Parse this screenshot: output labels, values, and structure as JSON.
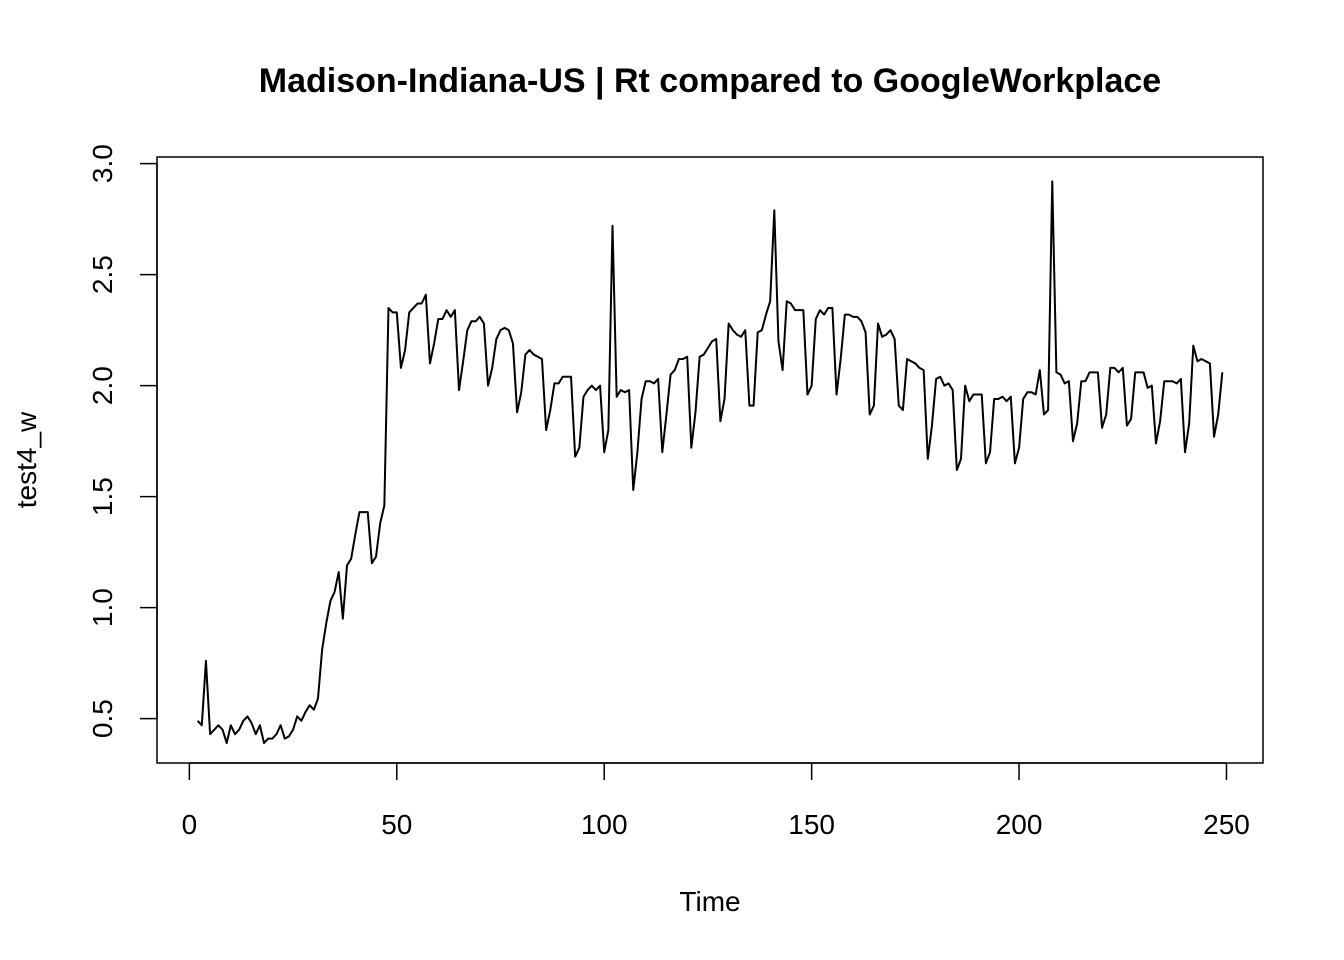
{
  "chart_data": {
    "type": "line",
    "title": "Madison-Indiana-US | Rt compared to GoogleWorkplace",
    "xlabel": "Time",
    "ylabel": "test4_w",
    "xlim": [
      -7.8,
      258.8
    ],
    "ylim": [
      0.3,
      3.03
    ],
    "x_ticks": [
      0,
      50,
      100,
      150,
      200,
      250
    ],
    "y_ticks": [
      0.5,
      1.0,
      1.5,
      2.0,
      2.5,
      3.0
    ],
    "x_tick_labels": [
      "0",
      "50",
      "100",
      "150",
      "200",
      "250"
    ],
    "y_tick_labels": [
      "0.5",
      "1.0",
      "1.5",
      "2.0",
      "2.5",
      "3.0"
    ],
    "grid": false,
    "line_color": "#000000",
    "series": [
      {
        "x_start": 2,
        "values": [
          0.49,
          0.47,
          0.76,
          0.43,
          0.45,
          0.47,
          0.45,
          0.39,
          0.47,
          0.43,
          0.45,
          0.49,
          0.51,
          0.48,
          0.43,
          0.47,
          0.39,
          0.41,
          0.41,
          0.43,
          0.47,
          0.41,
          0.42,
          0.45,
          0.51,
          0.49,
          0.53,
          0.56,
          0.54,
          0.59,
          0.81,
          0.93,
          1.03,
          1.07,
          1.16,
          0.95,
          1.19,
          1.22,
          1.33,
          1.43,
          1.43,
          1.43,
          1.2,
          1.23,
          1.38,
          1.46,
          2.35,
          2.33,
          2.33,
          2.08,
          2.16,
          2.33,
          2.35,
          2.37,
          2.37,
          2.41,
          2.1,
          2.19,
          2.3,
          2.3,
          2.34,
          2.31,
          2.34,
          1.98,
          2.11,
          2.25,
          2.29,
          2.29,
          2.31,
          2.28,
          2.0,
          2.08,
          2.21,
          2.25,
          2.26,
          2.25,
          2.19,
          1.88,
          1.97,
          2.14,
          2.16,
          2.14,
          2.13,
          2.12,
          1.8,
          1.89,
          2.01,
          2.01,
          2.04,
          2.04,
          2.04,
          1.68,
          1.72,
          1.95,
          1.98,
          2.0,
          1.98,
          2.0,
          1.7,
          1.8,
          2.72,
          1.95,
          1.98,
          1.97,
          1.98,
          1.53,
          1.7,
          1.94,
          2.02,
          2.02,
          2.01,
          2.03,
          1.7,
          1.87,
          2.05,
          2.07,
          2.12,
          2.12,
          2.13,
          1.72,
          1.88,
          2.13,
          2.14,
          2.17,
          2.2,
          2.21,
          1.84,
          1.94,
          2.28,
          2.25,
          2.23,
          2.22,
          2.25,
          1.91,
          1.91,
          2.24,
          2.25,
          2.32,
          2.38,
          2.79,
          2.2,
          2.07,
          2.38,
          2.37,
          2.34,
          2.34,
          2.34,
          1.96,
          2.0,
          2.3,
          2.34,
          2.32,
          2.35,
          2.35,
          1.96,
          2.12,
          2.32,
          2.32,
          2.31,
          2.31,
          2.29,
          2.24,
          1.87,
          1.91,
          2.28,
          2.22,
          2.23,
          2.25,
          2.21,
          1.91,
          1.89,
          2.12,
          2.11,
          2.1,
          2.08,
          2.07,
          1.67,
          1.82,
          2.03,
          2.04,
          2.0,
          2.01,
          1.98,
          1.62,
          1.67,
          2.0,
          1.93,
          1.96,
          1.96,
          1.96,
          1.65,
          1.7,
          1.94,
          1.94,
          1.95,
          1.93,
          1.95,
          1.65,
          1.72,
          1.94,
          1.97,
          1.97,
          1.96,
          2.07,
          1.87,
          1.89,
          2.92,
          2.06,
          2.05,
          2.01,
          2.02,
          1.75,
          1.83,
          2.02,
          2.02,
          2.06,
          2.06,
          2.06,
          1.81,
          1.87,
          2.08,
          2.08,
          2.06,
          2.08,
          1.82,
          1.85,
          2.06,
          2.06,
          2.06,
          1.99,
          2.0,
          1.74,
          1.84,
          2.02,
          2.02,
          2.02,
          2.01,
          2.03,
          1.7,
          1.83,
          2.18,
          2.11,
          2.12,
          2.11,
          2.1,
          1.77,
          1.87,
          2.06
        ]
      }
    ]
  }
}
